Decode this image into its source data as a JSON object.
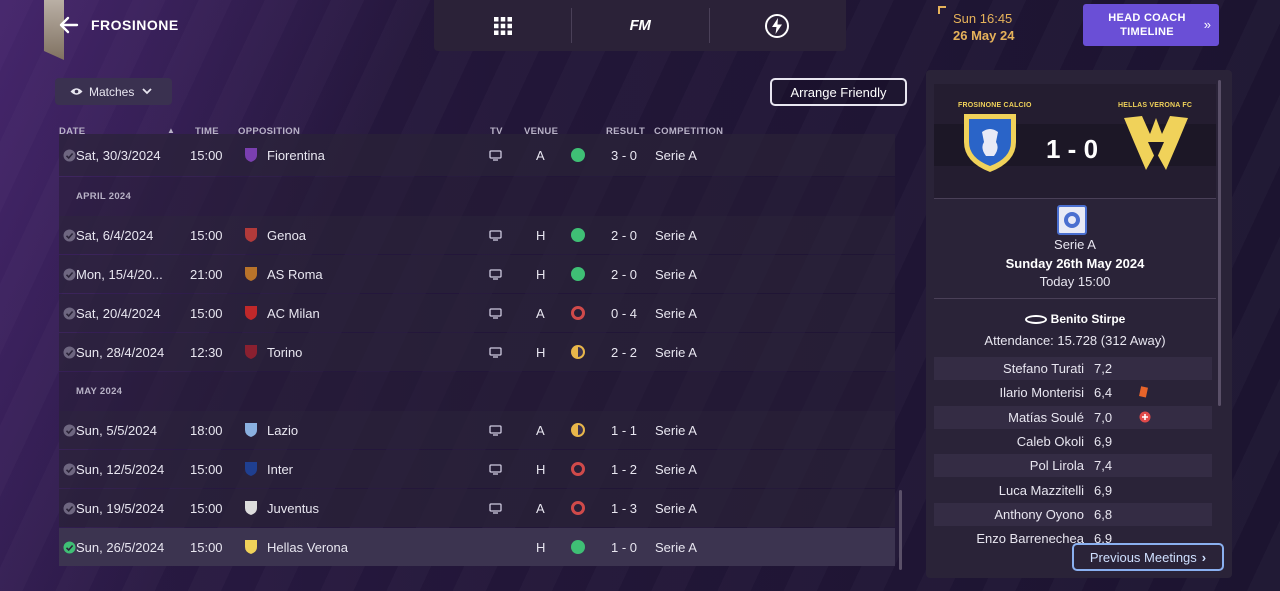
{
  "header": {
    "club_name": "FROSINONE",
    "nav": {
      "fm_label": "FM"
    },
    "clock": {
      "time": "Sun 16:45",
      "date": "26 May 24"
    },
    "head_coach_button": {
      "line1": "HEAD COACH",
      "line2": "TIMELINE"
    }
  },
  "toolbar": {
    "matches_dropdown": "Matches",
    "arrange_friendly": "Arrange Friendly"
  },
  "columns": {
    "date": "DATE",
    "time": "TIME",
    "opposition": "OPPOSITION",
    "tv": "TV",
    "venue": "VENUE",
    "result": "RESULT",
    "competition": "COMPETITION"
  },
  "fixtures": [
    {
      "date": "Sat, 30/3/2024",
      "time": "15:00",
      "opponent": "Fiorentina",
      "venue": "A",
      "result": "3 - 0",
      "outcome": "win",
      "competition": "Serie A",
      "tv": true
    },
    {
      "month": "APRIL 2024"
    },
    {
      "date": "Sat, 6/4/2024",
      "time": "15:00",
      "opponent": "Genoa",
      "venue": "H",
      "result": "2 - 0",
      "outcome": "win",
      "competition": "Serie A",
      "tv": true
    },
    {
      "date": "Mon, 15/4/20...",
      "time": "21:00",
      "opponent": "AS Roma",
      "venue": "H",
      "result": "2 - 0",
      "outcome": "win",
      "competition": "Serie A",
      "tv": true
    },
    {
      "date": "Sat, 20/4/2024",
      "time": "15:00",
      "opponent": "AC Milan",
      "venue": "A",
      "result": "0 - 4",
      "outcome": "loss",
      "competition": "Serie A",
      "tv": true
    },
    {
      "date": "Sun, 28/4/2024",
      "time": "12:30",
      "opponent": "Torino",
      "venue": "H",
      "result": "2 - 2",
      "outcome": "draw",
      "competition": "Serie A",
      "tv": true
    },
    {
      "month": "MAY 2024"
    },
    {
      "date": "Sun, 5/5/2024",
      "time": "18:00",
      "opponent": "Lazio",
      "venue": "A",
      "result": "1 - 1",
      "outcome": "draw",
      "competition": "Serie A",
      "tv": true
    },
    {
      "date": "Sun, 12/5/2024",
      "time": "15:00",
      "opponent": "Inter",
      "venue": "H",
      "result": "1 - 2",
      "outcome": "loss",
      "competition": "Serie A",
      "tv": true
    },
    {
      "date": "Sun, 19/5/2024",
      "time": "15:00",
      "opponent": "Juventus",
      "venue": "A",
      "result": "1 - 3",
      "outcome": "loss",
      "competition": "Serie A",
      "tv": true
    },
    {
      "date": "Sun, 26/5/2024",
      "time": "15:00",
      "opponent": "Hellas Verona",
      "venue": "H",
      "result": "1 - 0",
      "outcome": "win",
      "competition": "Serie A",
      "tv": false,
      "selected": true
    }
  ],
  "match_panel": {
    "home_badge_label": "FROSINONE CALCIO",
    "away_badge_label": "HELLAS VERONA FC",
    "score": "1 - 0",
    "competition": "Serie A",
    "date_long": "Sunday 26th May 2024",
    "kickoff": "Today 15:00",
    "stadium": "Benito Stirpe",
    "attendance": "Attendance: 15.728 (312 Away)",
    "ratings": [
      {
        "name": "Stefano Turati",
        "rating": "7,2",
        "icon": ""
      },
      {
        "name": "Ilario Monterisi",
        "rating": "6,4",
        "icon": "yellow-card"
      },
      {
        "name": "Matías Soulé",
        "rating": "7,0",
        "icon": "injury"
      },
      {
        "name": "Caleb Okoli",
        "rating": "6,9",
        "icon": ""
      },
      {
        "name": "Pol Lirola",
        "rating": "7,4",
        "icon": ""
      },
      {
        "name": "Luca Mazzitelli",
        "rating": "6,9",
        "icon": ""
      },
      {
        "name": "Anthony Oyono",
        "rating": "6,8",
        "icon": ""
      },
      {
        "name": "Enzo Barrenechea",
        "rating": "6,9",
        "icon": ""
      }
    ],
    "previous_meetings": "Previous Meetings"
  },
  "colors": {
    "accent": "#6a4fd6",
    "clock": "#e6b25a",
    "win": "#3fbf75",
    "loss": "#d04a4a",
    "draw": "#e8b64a"
  }
}
